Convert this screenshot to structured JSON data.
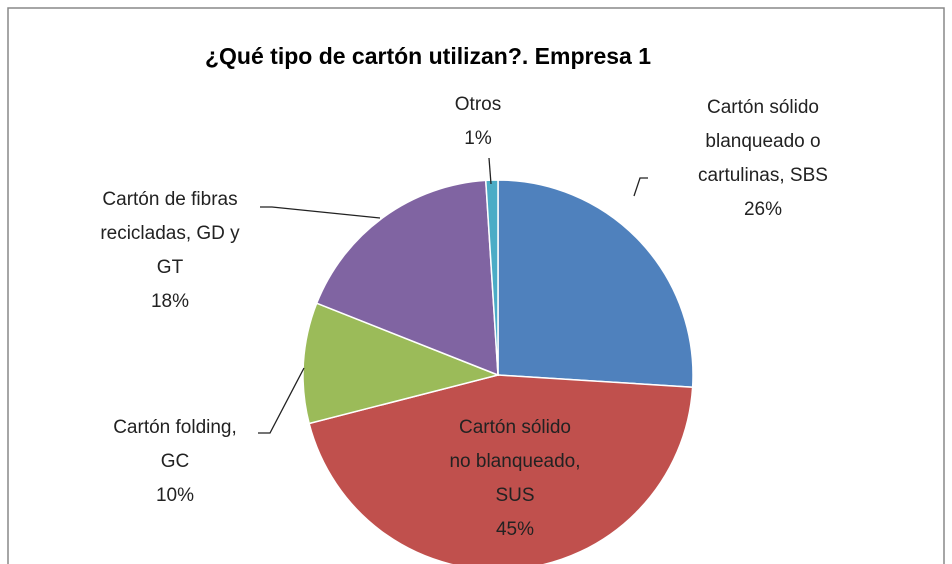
{
  "chart_data": {
    "type": "pie",
    "title": "¿Qué tipo de cartón utilizan?. Empresa 1",
    "categories": [
      "Cartón sólido blanqueado o cartulinas, SBS",
      "Cartón sólido no blanqueado, SUS",
      "Cartón folding, GC",
      "Cartón de fibras recicladas, GD y GT",
      "Otros"
    ],
    "values": [
      26,
      45,
      10,
      18,
      1
    ],
    "value_labels": [
      "26%",
      "45%",
      "10%",
      "18%",
      "1%"
    ],
    "colors": [
      "#4f81bd",
      "#c0504d",
      "#9bbb59",
      "#8064a2",
      "#4bacc6"
    ]
  }
}
